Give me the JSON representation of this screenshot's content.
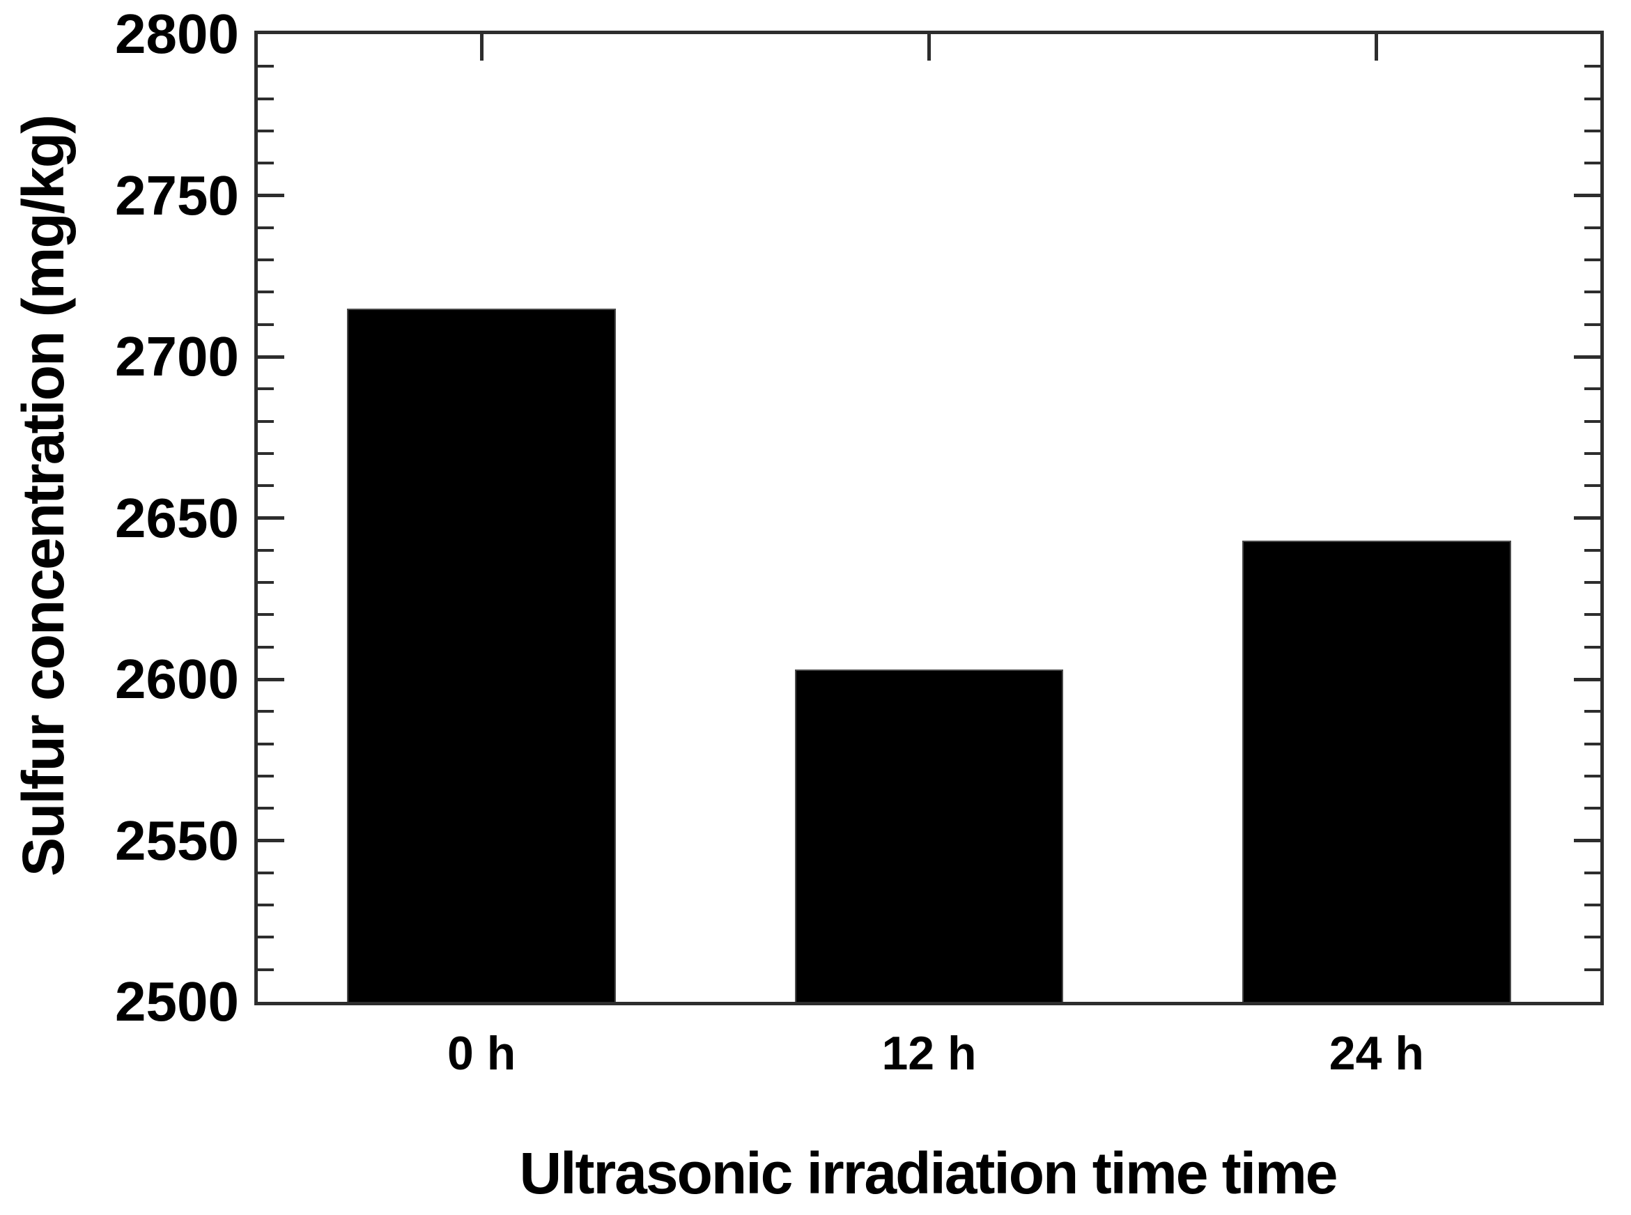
{
  "figure": {
    "background_color": "#ffffff",
    "axis_color": "#2d2d2d",
    "bar_fill_color": "#000000",
    "bar_edge_color": "#4a4a4a",
    "text_color": "#000000"
  },
  "chart_data": {
    "type": "bar",
    "categories": [
      "0 h",
      "12 h",
      "24 h"
    ],
    "values": [
      2715,
      2603,
      2643
    ],
    "xlabel": "Ultrasonic irradiation time time",
    "ylabel": "Sulfur concentration (mg/kg)",
    "ylim": [
      2500,
      2800
    ],
    "ytick_interval": 50,
    "yminor_interval": 10,
    "ytick_labels": [
      "2500",
      "2550",
      "2600",
      "2650",
      "2700",
      "2750",
      "2800"
    ],
    "bar_width_fraction": 0.6,
    "grid": false,
    "legend": null,
    "tick_direction": "in",
    "top_axis_category_ticks": true
  }
}
